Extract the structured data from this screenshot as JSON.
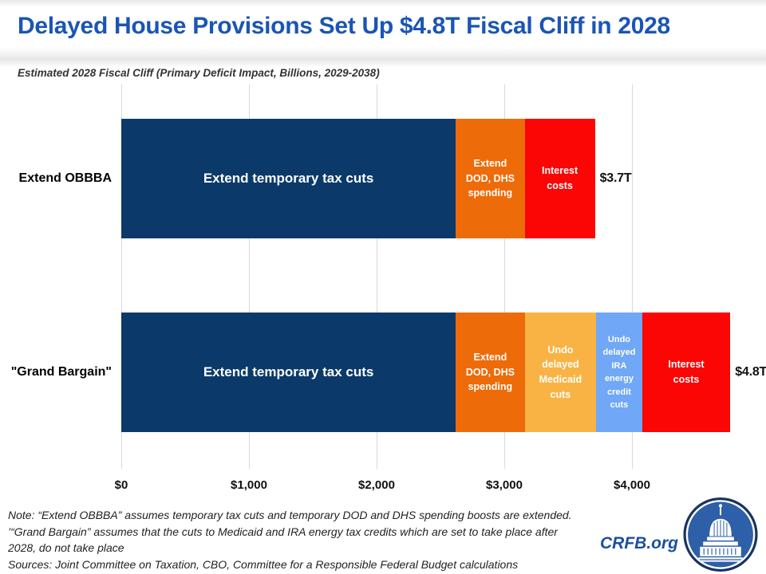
{
  "header": {
    "title": "Delayed House Provisions Set Up $4.8T Fiscal Cliff in 2028"
  },
  "subtitle": "Estimated 2028 Fiscal Cliff (Primary Deficit Impact, Billions, 2029-2038)",
  "chart_data": {
    "type": "bar",
    "orientation": "horizontal-stacked",
    "title": "Estimated 2028 Fiscal Cliff (Primary Deficit Impact, Billions, 2029-2038)",
    "categories": [
      "Extend OBBBA",
      "\"Grand Bargain\""
    ],
    "x_axis": {
      "ticks": [
        0,
        1000,
        2000,
        3000,
        4000
      ],
      "tick_labels": [
        "$0",
        "$1,000",
        "$2,000",
        "$3,000",
        "$4,000"
      ],
      "range": [
        0,
        5000
      ],
      "grid": true
    },
    "legend": "none",
    "bars": [
      {
        "category": "Extend OBBBA",
        "total_label": "$3.7T",
        "total_billions": 3710,
        "segments": [
          {
            "name": "Extend temporary tax cuts",
            "label": "Extend temporary tax cuts",
            "value_billions": 2620,
            "color": "#0b3a6a",
            "font_px": 17
          },
          {
            "name": "Extend DOD DHS spending",
            "label": "Extend\nDOD, DHS\nspending",
            "value_billions": 540,
            "color": "#ee6b09",
            "font_px": 12.5
          },
          {
            "name": "Interest costs",
            "label": "Interest\ncosts",
            "value_billions": 550,
            "color": "#fb0505",
            "font_px": 12.5
          }
        ]
      },
      {
        "category": "\"Grand Bargain\"",
        "total_label": "$4.8T",
        "total_billions": 4770,
        "segments": [
          {
            "name": "Extend temporary tax cuts",
            "label": "Extend temporary tax cuts",
            "value_billions": 2620,
            "color": "#0b3a6a",
            "font_px": 17
          },
          {
            "name": "Extend DOD DHS spending",
            "label": "Extend\nDOD, DHS\nspending",
            "value_billions": 540,
            "color": "#ee6b09",
            "font_px": 12.5
          },
          {
            "name": "Undo delayed Medicaid cuts",
            "label": "Undo\ndelayed\nMedicaid\ncuts",
            "value_billions": 560,
            "color": "#f9b344",
            "font_px": 12.5
          },
          {
            "name": "Undo delayed IRA energy credit cuts",
            "label": "Undo\ndelayed\nIRA\nenergy\ncredit\ncuts",
            "value_billions": 360,
            "color": "#70a7f6",
            "font_px": 11
          },
          {
            "name": "Interest costs",
            "label": "Interest\ncosts",
            "value_billions": 690,
            "color": "#fb0505",
            "font_px": 12.5
          }
        ]
      }
    ]
  },
  "notes": {
    "lines": [
      "Note: “Extend OBBBA” assumes temporary tax cuts and temporary DOD and DHS spending boosts are extended.",
      "’“Grand Bargain” assumes that the cuts to Medicaid and IRA energy tax credits which are set to take place after",
      "2028, do not take place",
      "Sources: Joint Committee on Taxation, CBO, Committee for a Responsible Federal Budget calculations"
    ]
  },
  "footer": {
    "site": "CRFB.org"
  },
  "colors": {
    "title_blue": "#1a55b6",
    "navy": "#0b3a6a",
    "orange": "#ee6b09",
    "red": "#fb0505",
    "amber": "#f9b344",
    "light_blue": "#70a7f6",
    "grid": "#d9d9d9",
    "crfb_blue": "#1c4f9e",
    "logo_navy": "#16355f",
    "logo_blue": "#2e5fa9"
  }
}
